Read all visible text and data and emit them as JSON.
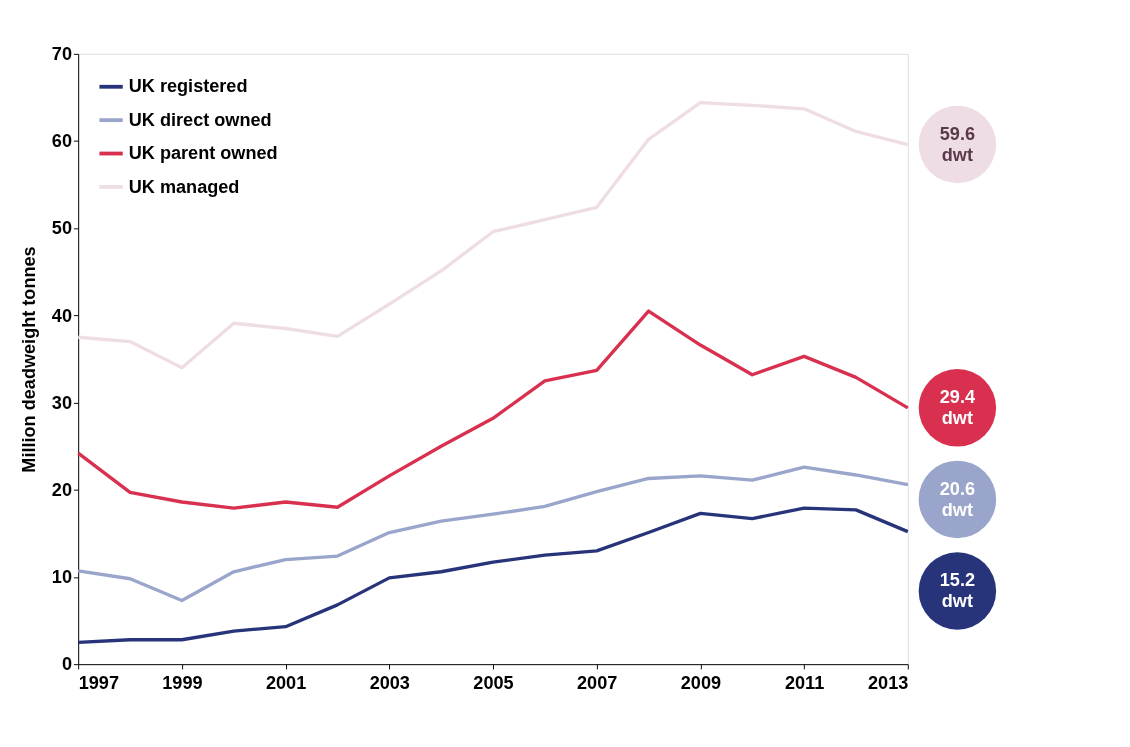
{
  "chart_data": {
    "type": "line",
    "ylabel": "Million deadweight tonnes",
    "x": [
      1997,
      1998,
      1999,
      2000,
      2001,
      2002,
      2003,
      2004,
      2005,
      2006,
      2007,
      2008,
      2009,
      2010,
      2011,
      2012,
      2013
    ],
    "xlim": [
      1997,
      2013
    ],
    "xticks": [
      1997,
      1999,
      2001,
      2003,
      2005,
      2007,
      2009,
      2011,
      2013
    ],
    "ylim": [
      0,
      70
    ],
    "yticks": [
      0,
      10,
      20,
      30,
      40,
      50,
      60,
      70
    ],
    "grid": false,
    "legend": "top left",
    "marker": "none",
    "line_style": "solid",
    "series": [
      {
        "name": "UK registered",
        "color": "#27347a",
        "values": [
          2.5,
          2.8,
          2.8,
          3.8,
          4.3,
          6.8,
          9.9,
          10.6,
          11.7,
          12.5,
          13.0,
          15.1,
          17.3,
          16.7,
          17.9,
          17.7,
          15.2
        ],
        "value_labels": [
          null,
          null,
          null,
          null,
          null,
          null,
          null,
          null,
          null,
          null,
          null,
          null,
          null,
          null,
          null,
          null,
          "15.2 dwt"
        ]
      },
      {
        "name": "UK direct owned",
        "color": "#9aa5cb",
        "values": [
          10.7,
          9.8,
          7.3,
          10.6,
          12.0,
          12.4,
          15.1,
          16.4,
          17.2,
          18.1,
          19.8,
          21.3,
          21.6,
          21.1,
          22.6,
          21.7,
          20.6
        ],
        "value_labels": [
          null,
          null,
          null,
          null,
          null,
          null,
          null,
          null,
          null,
          null,
          null,
          null,
          null,
          null,
          null,
          null,
          "20.6 dwt"
        ]
      },
      {
        "name": "UK parent owned",
        "color": "#d9304f",
        "values": [
          24.2,
          19.7,
          18.6,
          17.9,
          18.6,
          18.0,
          21.6,
          25.0,
          28.2,
          32.5,
          33.7,
          40.5,
          36.6,
          33.2,
          35.3,
          32.9,
          29.4
        ],
        "value_labels": [
          null,
          null,
          null,
          null,
          null,
          null,
          null,
          null,
          null,
          null,
          null,
          null,
          null,
          null,
          null,
          null,
          "29.4 dwt"
        ]
      },
      {
        "name": "UK managed",
        "color": "#efdde6",
        "values": [
          37.5,
          37.0,
          34.0,
          39.1,
          38.5,
          37.6,
          41.3,
          45.1,
          49.6,
          51.0,
          52.4,
          60.2,
          64.4,
          64.1,
          63.7,
          61.1,
          59.6
        ],
        "value_labels": [
          null,
          null,
          null,
          null,
          null,
          null,
          null,
          null,
          null,
          null,
          null,
          null,
          null,
          null,
          null,
          null,
          "59.6 dwt"
        ]
      }
    ]
  }
}
